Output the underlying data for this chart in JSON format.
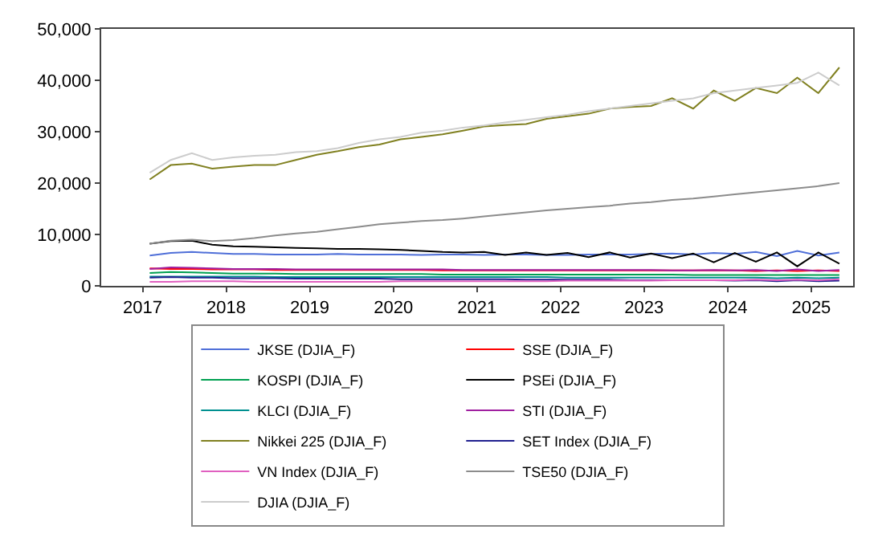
{
  "chart_data": {
    "type": "line",
    "x": [
      "2017-08",
      "2017-11",
      "2018-02",
      "2018-05",
      "2018-08",
      "2018-11",
      "2019-02",
      "2019-05",
      "2019-08",
      "2019-11",
      "2020-02",
      "2020-05",
      "2020-08",
      "2020-11",
      "2021-02",
      "2021-05",
      "2021-08",
      "2021-11",
      "2022-02",
      "2022-05",
      "2022-08",
      "2022-11",
      "2023-02",
      "2023-05",
      "2023-08",
      "2023-11",
      "2024-02",
      "2024-05",
      "2024-08",
      "2024-11",
      "2025-02",
      "2025-05",
      "2025-08",
      "2025-11"
    ],
    "xlim": [
      "2017-01-01",
      "2025-12-31"
    ],
    "xticks": [
      {
        "value": "2017-07-01",
        "label": "2017"
      },
      {
        "value": "2018-07-01",
        "label": "2018"
      },
      {
        "value": "2019-07-01",
        "label": "2019"
      },
      {
        "value": "2020-07-01",
        "label": "2020"
      },
      {
        "value": "2021-07-01",
        "label": "2021"
      },
      {
        "value": "2022-07-01",
        "label": "2022"
      },
      {
        "value": "2023-07-01",
        "label": "2023"
      },
      {
        "value": "2024-07-01",
        "label": "2024"
      },
      {
        "value": "2025-07-01",
        "label": "2025"
      }
    ],
    "ylim": [
      0,
      50000
    ],
    "yticks": [
      0,
      {
        "value": 10000,
        "label": "10,000"
      },
      {
        "value": 20000,
        "label": "20,000"
      },
      {
        "value": 30000,
        "label": "30,000"
      },
      {
        "value": 40000,
        "label": "40,000"
      },
      {
        "value": 50000,
        "label": "50,000"
      }
    ],
    "legend": "bottom",
    "series": [
      {
        "name": "JKSE (DJIA_F)",
        "color": "#4f6fd8",
        "values": [
          5900,
          6400,
          6600,
          6400,
          6200,
          6200,
          6100,
          6100,
          6100,
          6200,
          6100,
          6100,
          6100,
          6000,
          6100,
          6100,
          6000,
          6100,
          6100,
          6000,
          6000,
          6100,
          6100,
          6100,
          6200,
          6300,
          6100,
          6400,
          6200,
          6600,
          5800,
          6800,
          5900,
          6500
        ]
      },
      {
        "name": "SSE (DJIA_F)",
        "color": "#ff0000",
        "values": [
          3400,
          3300,
          3300,
          3200,
          3200,
          3200,
          3100,
          3100,
          3100,
          3100,
          3100,
          3100,
          3100,
          3100,
          3000,
          3000,
          3000,
          3000,
          3000,
          3000,
          3000,
          3000,
          3000,
          3000,
          3000,
          3000,
          3000,
          3000,
          3000,
          2900,
          3000,
          2900,
          3000,
          2900
        ]
      },
      {
        "name": "KOSPI (DJIA_F)",
        "color": "#00a050",
        "values": [
          2500,
          2700,
          2600,
          2500,
          2400,
          2400,
          2400,
          2300,
          2300,
          2300,
          2300,
          2300,
          2300,
          2300,
          2200,
          2200,
          2200,
          2200,
          2200,
          2200,
          2200,
          2200,
          2200,
          2200,
          2200,
          2200,
          2100,
          2100,
          2100,
          2100,
          2100,
          2100,
          2100,
          2100
        ]
      },
      {
        "name": "PSEi (DJIA_F)",
        "color": "#000000",
        "values": [
          8200,
          8700,
          8800,
          8000,
          7700,
          7600,
          7500,
          7400,
          7300,
          7200,
          7200,
          7100,
          7000,
          6800,
          6600,
          6500,
          6600,
          6000,
          6500,
          6000,
          6400,
          5600,
          6500,
          5500,
          6300,
          5400,
          6300,
          4600,
          6400,
          4700,
          6500,
          3800,
          6500,
          4300
        ]
      },
      {
        "name": "KLCI (DJIA_F)",
        "color": "#009090",
        "values": [
          1800,
          1800,
          1800,
          1800,
          1800,
          1800,
          1700,
          1700,
          1700,
          1700,
          1700,
          1700,
          1700,
          1700,
          1700,
          1700,
          1700,
          1700,
          1700,
          1700,
          1600,
          1600,
          1600,
          1600,
          1600,
          1600,
          1600,
          1600,
          1600,
          1600,
          1500,
          1600,
          1500,
          1600
        ]
      },
      {
        "name": "STI (DJIA_F)",
        "color": "#a020a0",
        "values": [
          3300,
          3600,
          3500,
          3400,
          3300,
          3300,
          3300,
          3200,
          3200,
          3200,
          3200,
          3200,
          3200,
          3200,
          3200,
          3100,
          3100,
          3100,
          3100,
          3100,
          3100,
          3100,
          3100,
          3100,
          3100,
          3000,
          3000,
          3100,
          3000,
          3100,
          2900,
          3200,
          2900,
          3100
        ]
      },
      {
        "name": "Nikkei 225 (DJIA_F)",
        "color": "#808020",
        "values": [
          20700,
          23500,
          23800,
          22800,
          23200,
          23500,
          23500,
          24500,
          25500,
          26200,
          27000,
          27500,
          28500,
          29000,
          29500,
          30200,
          31000,
          31300,
          31500,
          32500,
          33000,
          33500,
          34500,
          34800,
          35000,
          36500,
          34500,
          38000,
          36000,
          38500,
          37500,
          40500,
          37500,
          42500
        ]
      },
      {
        "name": "SET Index (DJIA_F)",
        "color": "#202090",
        "values": [
          1600,
          1700,
          1600,
          1600,
          1500,
          1500,
          1500,
          1400,
          1400,
          1400,
          1400,
          1400,
          1300,
          1300,
          1300,
          1300,
          1300,
          1300,
          1200,
          1200,
          1200,
          1200,
          1200,
          1100,
          1100,
          1100,
          1100,
          1100,
          1000,
          1100,
          900,
          1100,
          900,
          1000
        ]
      },
      {
        "name": "VN Index (DJIA_F)",
        "color": "#e060c0",
        "values": [
          800,
          800,
          900,
          900,
          900,
          800,
          800,
          800,
          800,
          800,
          800,
          800,
          900,
          900,
          900,
          900,
          900,
          900,
          900,
          900,
          1000,
          1000,
          1000,
          1000,
          1000,
          1100,
          1100,
          1100,
          1100,
          1200,
          1100,
          1200,
          1100,
          1300
        ]
      },
      {
        "name": "TSE50 (DJIA_F)",
        "color": "#8c8c8c",
        "values": [
          8200,
          8800,
          9000,
          8700,
          8900,
          9300,
          9800,
          10200,
          10500,
          11000,
          11500,
          12000,
          12300,
          12600,
          12800,
          13100,
          13500,
          13900,
          14300,
          14700,
          15000,
          15300,
          15600,
          16000,
          16300,
          16700,
          17000,
          17400,
          17800,
          18200,
          18600,
          19000,
          19400,
          20000
        ]
      },
      {
        "name": "DJIA (DJIA_F)",
        "color": "#cccccc",
        "values": [
          22000,
          24500,
          25800,
          24500,
          25000,
          25300,
          25500,
          26000,
          26200,
          26800,
          27800,
          28500,
          29000,
          29800,
          30200,
          30800,
          31200,
          31800,
          32300,
          32800,
          33300,
          34000,
          34500,
          35000,
          35500,
          36000,
          36500,
          37500,
          38000,
          38500,
          39000,
          39500,
          41500,
          39000
        ]
      }
    ]
  }
}
